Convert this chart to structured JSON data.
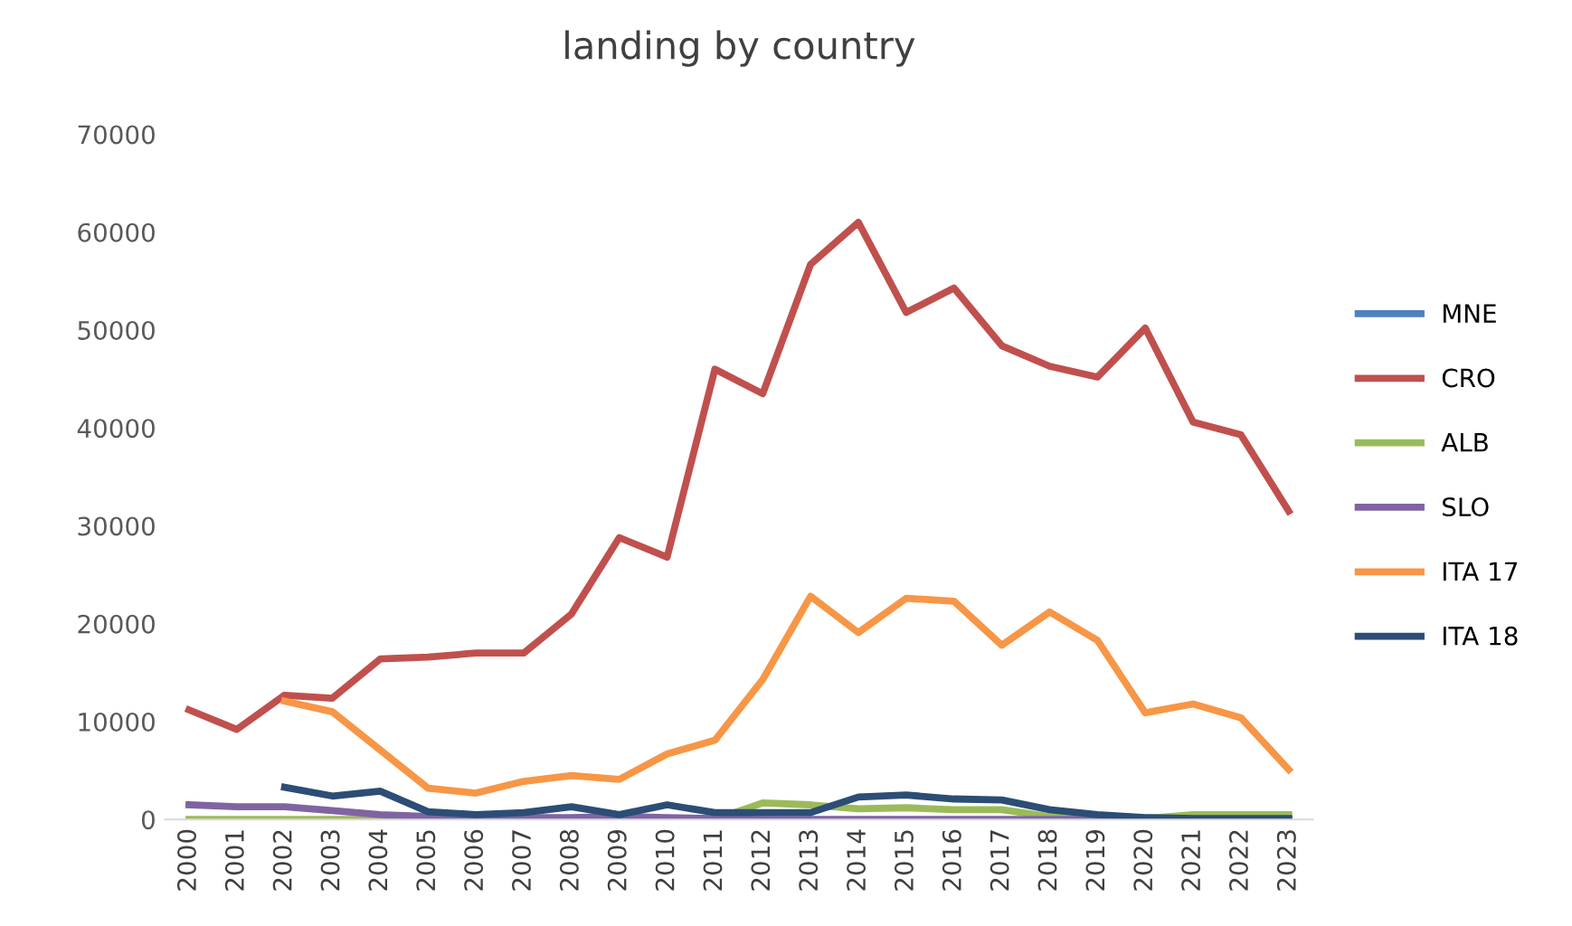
{
  "chart_data": {
    "type": "line",
    "title": "landing by country",
    "categories": [
      "2000",
      "2001",
      "2002",
      "2003",
      "2004",
      "2005",
      "2006",
      "2007",
      "2008",
      "2009",
      "2010",
      "2011",
      "2012",
      "2013",
      "2014",
      "2015",
      "2016",
      "2017",
      "2018",
      "2019",
      "2020",
      "2021",
      "2022",
      "2023"
    ],
    "ylim": [
      0,
      70000
    ],
    "yticks": [
      0,
      10000,
      20000,
      30000,
      40000,
      50000,
      60000,
      70000
    ],
    "grid": false,
    "legend": "right",
    "marker": "none",
    "line_style": "solid",
    "series": [
      {
        "name": "MNE",
        "color": "#4f81bd",
        "values": [
          null,
          null,
          null,
          null,
          null,
          null,
          null,
          null,
          null,
          null,
          null,
          null,
          null,
          null,
          null,
          null,
          null,
          null,
          null,
          null,
          null,
          null,
          null,
          null
        ]
      },
      {
        "name": "CRO",
        "color": "#c0504d",
        "values": [
          11200,
          9200,
          12700,
          12400,
          16400,
          16600,
          17000,
          17000,
          21000,
          28800,
          26800,
          46000,
          43500,
          56700,
          61000,
          51800,
          54300,
          48400,
          46300,
          45200,
          50200,
          40600,
          39300,
          31500
        ]
      },
      {
        "name": "ALB",
        "color": "#9bbb59",
        "values": [
          0,
          0,
          0,
          0,
          0,
          0,
          0,
          0,
          0,
          0,
          0,
          0,
          1700,
          1500,
          1100,
          1200,
          1000,
          1000,
          300,
          200,
          100,
          500,
          500,
          500
        ]
      },
      {
        "name": "SLO",
        "color": "#8064a2",
        "values": [
          1500,
          1300,
          1300,
          900,
          500,
          300,
          200,
          200,
          200,
          300,
          200,
          100,
          0,
          0,
          0,
          0,
          0,
          0,
          0,
          0,
          0,
          0,
          0,
          0
        ]
      },
      {
        "name": "ITA 17",
        "color": "#f79646",
        "values": [
          null,
          null,
          12100,
          11000,
          7100,
          3200,
          2700,
          3900,
          4500,
          4100,
          6700,
          8100,
          14300,
          22800,
          19100,
          22600,
          22300,
          17800,
          21200,
          18300,
          10900,
          11800,
          10400,
          5100
        ]
      },
      {
        "name": "ITA 18",
        "color": "#2c4d75",
        "values": [
          null,
          null,
          3300,
          2400,
          2900,
          800,
          500,
          700,
          1300,
          500,
          1500,
          700,
          700,
          700,
          2300,
          2500,
          2100,
          2000,
          1000,
          500,
          200,
          100,
          100,
          100
        ]
      }
    ]
  }
}
